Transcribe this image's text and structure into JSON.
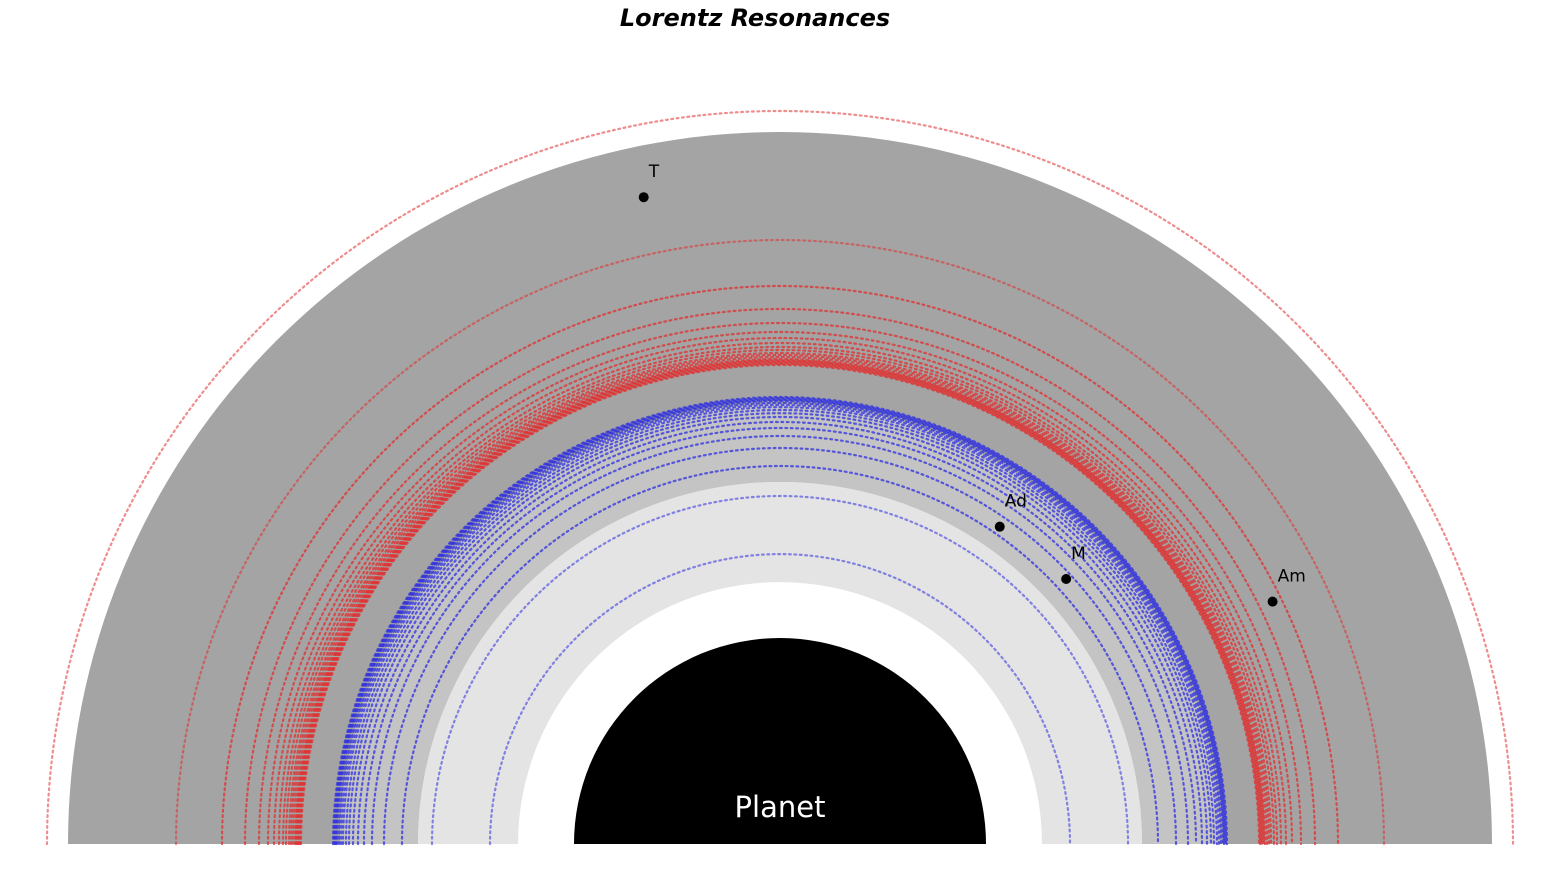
{
  "chart_data": {
    "type": "scatter",
    "title": "Lorentz Resonances",
    "planet_label": "Planet",
    "rings": [
      {
        "name": "outer-main-ring",
        "inner": 440,
        "outer": 712,
        "color": "#a4a4a4"
      },
      {
        "name": "middle-ring",
        "inner": 362,
        "outer": 440,
        "color": "#c4c4c4"
      },
      {
        "name": "inner-light-ring",
        "inner": 262,
        "outer": 362,
        "color": "#e4e4e4"
      }
    ],
    "planet_radius": 206,
    "outer_limit_radius": 733,
    "moons": [
      {
        "label": "T",
        "r": 661,
        "angle_deg": 101.9
      },
      {
        "label": "Ad",
        "r": 386,
        "angle_deg": 55.3
      },
      {
        "label": "M",
        "r": 390,
        "angle_deg": 42.8
      },
      {
        "label": "Am",
        "r": 549,
        "angle_deg": 26.2
      }
    ],
    "resonance_series": [
      {
        "color": "#e03030",
        "radii": [
          733,
          604,
          558,
          535,
          521,
          512,
          506,
          501,
          497,
          494,
          491,
          489,
          487,
          485,
          484,
          483,
          482,
          481,
          480,
          479
        ]
      },
      {
        "color": "#3030e0",
        "radii": [
          290,
          348,
          378,
          396,
          408,
          416,
          422,
          427,
          431,
          434,
          437,
          439,
          441,
          443,
          444,
          445,
          446,
          447
        ]
      }
    ],
    "colors": {
      "planet": "#000000",
      "moon": "#000000",
      "resonance_outer": "#e03030",
      "resonance_inner": "#3030e0"
    }
  }
}
